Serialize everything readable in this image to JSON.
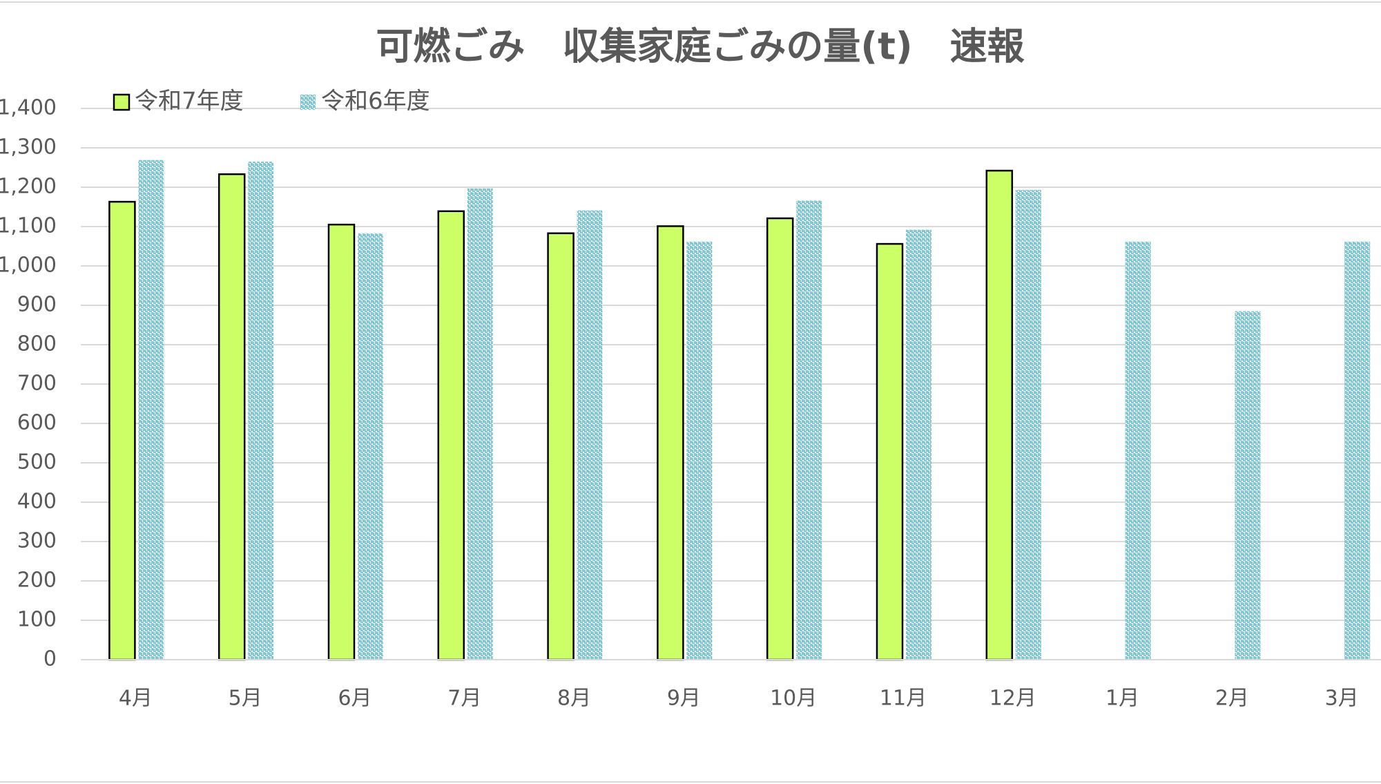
{
  "chart_data": {
    "type": "bar",
    "title": "可燃ごみ　収集家庭ごみの量(t)　速報",
    "categories": [
      "4月",
      "5月",
      "6月",
      "7月",
      "8月",
      "9月",
      "10月",
      "11月",
      "12月",
      "1月",
      "2月",
      "3月"
    ],
    "series": [
      {
        "name": "令和7年度",
        "color": "#ccff66",
        "values": [
          1163,
          1233,
          1105,
          1139,
          1083,
          1101,
          1121,
          1056,
          1242,
          null,
          null,
          null
        ]
      },
      {
        "name": "令和6年度",
        "color": "#7fc8d8",
        "values": [
          1269,
          1265,
          1083,
          1197,
          1141,
          1062,
          1166,
          1092,
          1193,
          1062,
          885,
          1062
        ]
      }
    ],
    "ylim": [
      0,
      1400
    ],
    "yticks": [
      0,
      100,
      200,
      300,
      400,
      500,
      600,
      700,
      800,
      900,
      {
        "value": 1000,
        "label": "1,000"
      },
      {
        "value": 1100,
        "label": "1,100"
      },
      {
        "value": 1200,
        "label": "1,200"
      },
      {
        "value": 1300,
        "label": "1,300"
      },
      {
        "value": 1400,
        "label": "1,400"
      }
    ],
    "grid": true,
    "legend": "top-left"
  }
}
